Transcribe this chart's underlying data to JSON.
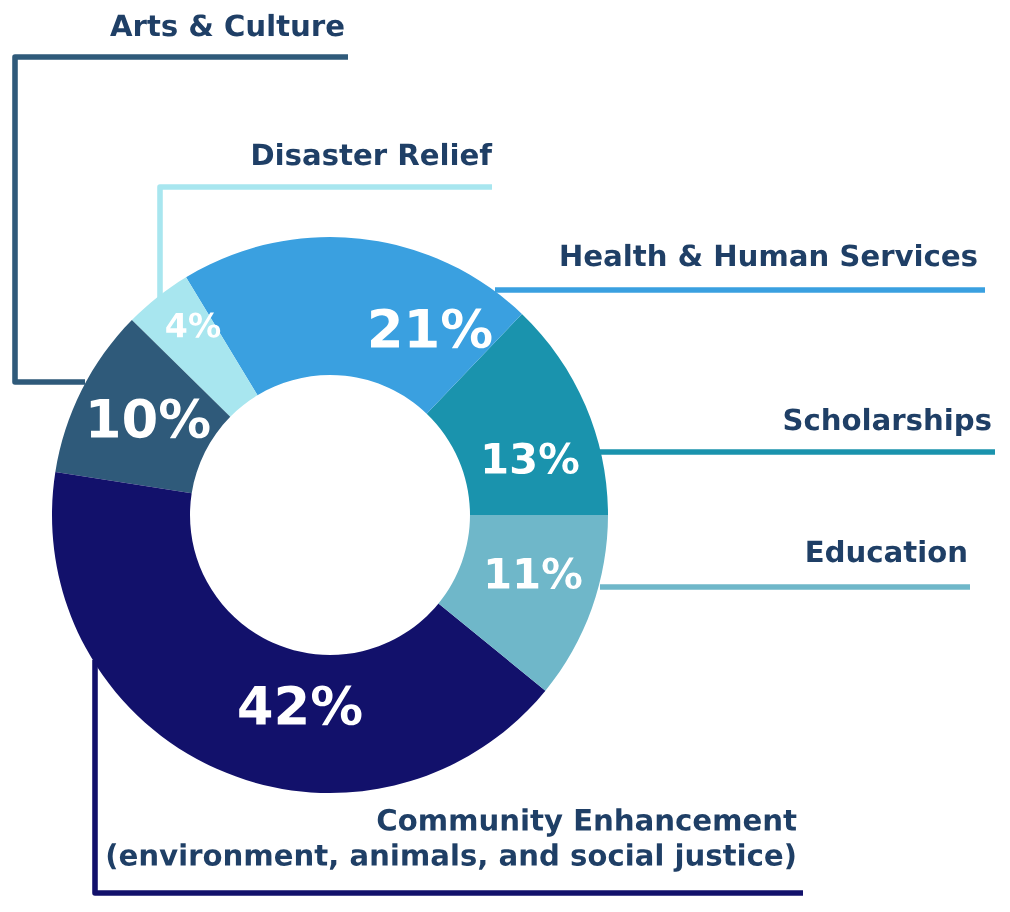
{
  "chart_data": {
    "type": "donut",
    "categories": [
      "Scholarships",
      "Health & Human Services",
      "Disaster Relief",
      "Arts & Culture",
      "Community Enhancement\n(environment, animals, and social justice)",
      "Education"
    ],
    "values": [
      13,
      21,
      4,
      10,
      42,
      11
    ],
    "value_labels": [
      "13%",
      "21%",
      "4%",
      "10%",
      "42%",
      "11%"
    ],
    "colors": [
      "#1a93ad",
      "#3aa0e0",
      "#a8e6ef",
      "#2f5a7a",
      "#12116b",
      "#6fb7c9"
    ]
  }
}
